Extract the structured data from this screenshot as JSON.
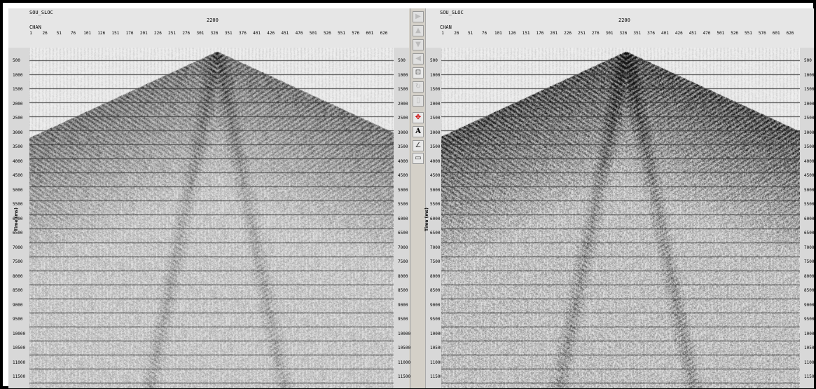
{
  "panels": [
    {
      "header_key": "SOU_SLOC",
      "header_value": "2200",
      "axis_label": "CHAN",
      "time_label": "Time (ms)",
      "chan_ticks": [
        "1",
        "26",
        "51",
        "76",
        "101",
        "126",
        "151",
        "176",
        "201",
        "226",
        "251",
        "276",
        "301",
        "326",
        "351",
        "376",
        "401",
        "426",
        "451",
        "476",
        "501",
        "526",
        "551",
        "576",
        "601",
        "626"
      ],
      "time_ticks": [
        "500",
        "1000",
        "1500",
        "2000",
        "2500",
        "3000",
        "3500",
        "4000",
        "4500",
        "5000",
        "5500",
        "6000",
        "6500",
        "7000",
        "7500",
        "8000",
        "8500",
        "9000",
        "9500",
        "10000",
        "10500",
        "11000",
        "11500"
      ]
    },
    {
      "header_key": "SOU_SLOC",
      "header_value": "2200",
      "axis_label": "CHAN",
      "time_label": "Time (ms)",
      "chan_ticks": [
        "1",
        "26",
        "51",
        "76",
        "101",
        "126",
        "151",
        "176",
        "201",
        "226",
        "251",
        "276",
        "301",
        "326",
        "351",
        "376",
        "401",
        "426",
        "451",
        "476",
        "501",
        "526",
        "551",
        "576",
        "601",
        "626"
      ],
      "time_ticks": [
        "500",
        "1000",
        "1500",
        "2000",
        "2500",
        "3000",
        "3500",
        "4000",
        "4500",
        "5000",
        "5500",
        "6000",
        "6500",
        "7000",
        "7500",
        "8000",
        "8500",
        "9000",
        "9500",
        "10000",
        "10500",
        "11000",
        "11500"
      ]
    }
  ],
  "toolbar": {
    "tools": [
      {
        "name": "next-arrow-icon",
        "glyph": "▶",
        "state": "disabled"
      },
      {
        "name": "up-arrow-icon",
        "glyph": "▲",
        "state": "disabled"
      },
      {
        "name": "down-arrow-icon",
        "glyph": "▼",
        "state": "disabled"
      },
      {
        "name": "back-arrow-icon",
        "glyph": "◀",
        "state": "disabled"
      },
      {
        "name": "zoom-icon",
        "glyph": "⊡",
        "state": "enabled"
      },
      {
        "name": "rotate-icon",
        "glyph": "↻",
        "state": "disabled"
      },
      {
        "name": "page-icon",
        "glyph": "▯",
        "state": "disabled"
      },
      {
        "name": "move-crosshair-icon",
        "glyph": "✥",
        "state": "active"
      },
      {
        "name": "text-annotation-icon",
        "glyph": "A",
        "state": "enabled"
      },
      {
        "name": "velocity-icon",
        "glyph": "∠",
        "state": "enabled"
      },
      {
        "name": "blank-page-icon",
        "glyph": "▭",
        "state": "enabled"
      }
    ]
  }
}
